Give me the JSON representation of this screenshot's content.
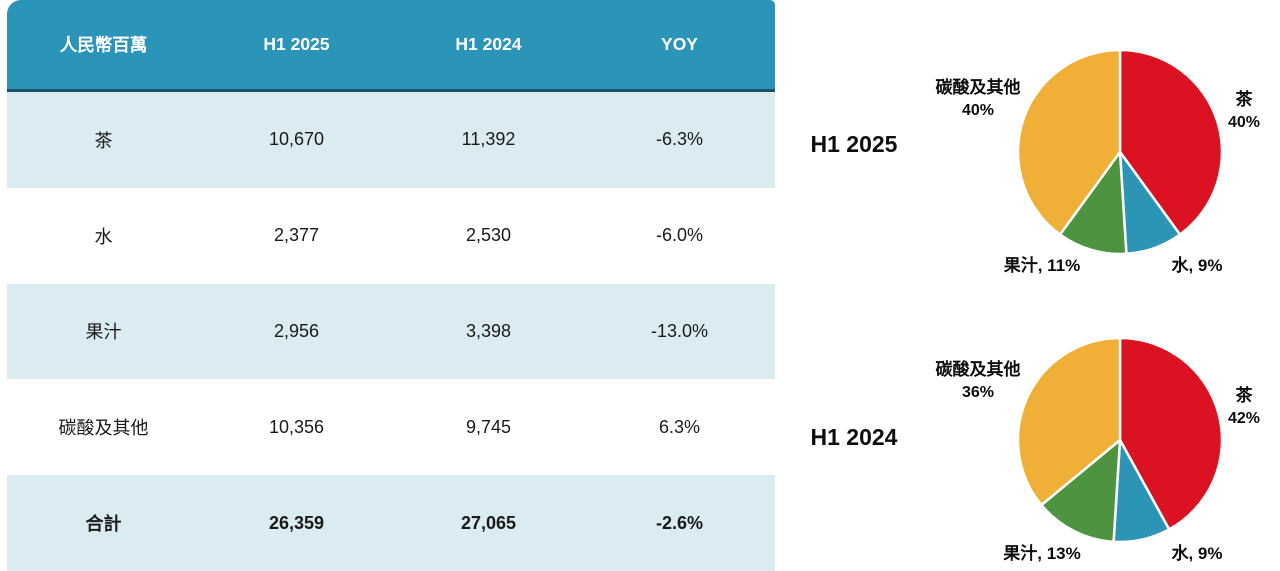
{
  "colors": {
    "header_bg": "#2A95B8",
    "header_border": "#1B506A",
    "row_alt_bg": "#DAEBF2",
    "tea_red": "#DA1222",
    "water_blue": "#2C95B5",
    "juice_green": "#4E9440",
    "carbonated_orange": "#F0AF37"
  },
  "table": {
    "headers": [
      "人民幣百萬",
      "H1 2025",
      "H1 2024",
      "YOY"
    ],
    "rows": [
      {
        "label": "茶",
        "h1_2025": "10,670",
        "h1_2024": "11,392",
        "yoy": "-6.3%"
      },
      {
        "label": "水",
        "h1_2025": "2,377",
        "h1_2024": "2,530",
        "yoy": "-6.0%"
      },
      {
        "label": "果汁",
        "h1_2025": "2,956",
        "h1_2024": "3,398",
        "yoy": "-13.0%"
      },
      {
        "label": "碳酸及其他",
        "h1_2025": "10,356",
        "h1_2024": "9,745",
        "yoy": "6.3%"
      }
    ],
    "total": {
      "label": "合計",
      "h1_2025": "26,359",
      "h1_2024": "27,065",
      "yoy": "-2.6%"
    }
  },
  "chart_data": [
    {
      "type": "pie",
      "title": "H1 2025",
      "labels": [
        "茶",
        "水",
        "果汁",
        "碳酸及其他"
      ],
      "values": [
        40,
        9,
        11,
        40
      ],
      "colors": [
        "#DA1222",
        "#2C95B5",
        "#4E9440",
        "#F0AF37"
      ],
      "start_angle_deg": -90,
      "direction": "clockwise",
      "legend_position": "around-slices",
      "annotations": {
        "carbonated": {
          "line1": "碳酸及其他",
          "line2": "40%"
        },
        "tea": {
          "line1": "茶",
          "line2": "40%"
        },
        "juice": "果汁, 11%",
        "water": "水, 9%"
      }
    },
    {
      "type": "pie",
      "title": "H1 2024",
      "labels": [
        "茶",
        "水",
        "果汁",
        "碳酸及其他"
      ],
      "values": [
        42,
        9,
        13,
        36
      ],
      "colors": [
        "#DA1222",
        "#2C95B5",
        "#4E9440",
        "#F0AF37"
      ],
      "start_angle_deg": -90,
      "direction": "clockwise",
      "legend_position": "around-slices",
      "annotations": {
        "carbonated": {
          "line1": "碳酸及其他",
          "line2": "36%"
        },
        "tea": {
          "line1": "茶",
          "line2": "42%"
        },
        "juice": "果汁, 13%",
        "water": "水, 9%"
      }
    }
  ]
}
